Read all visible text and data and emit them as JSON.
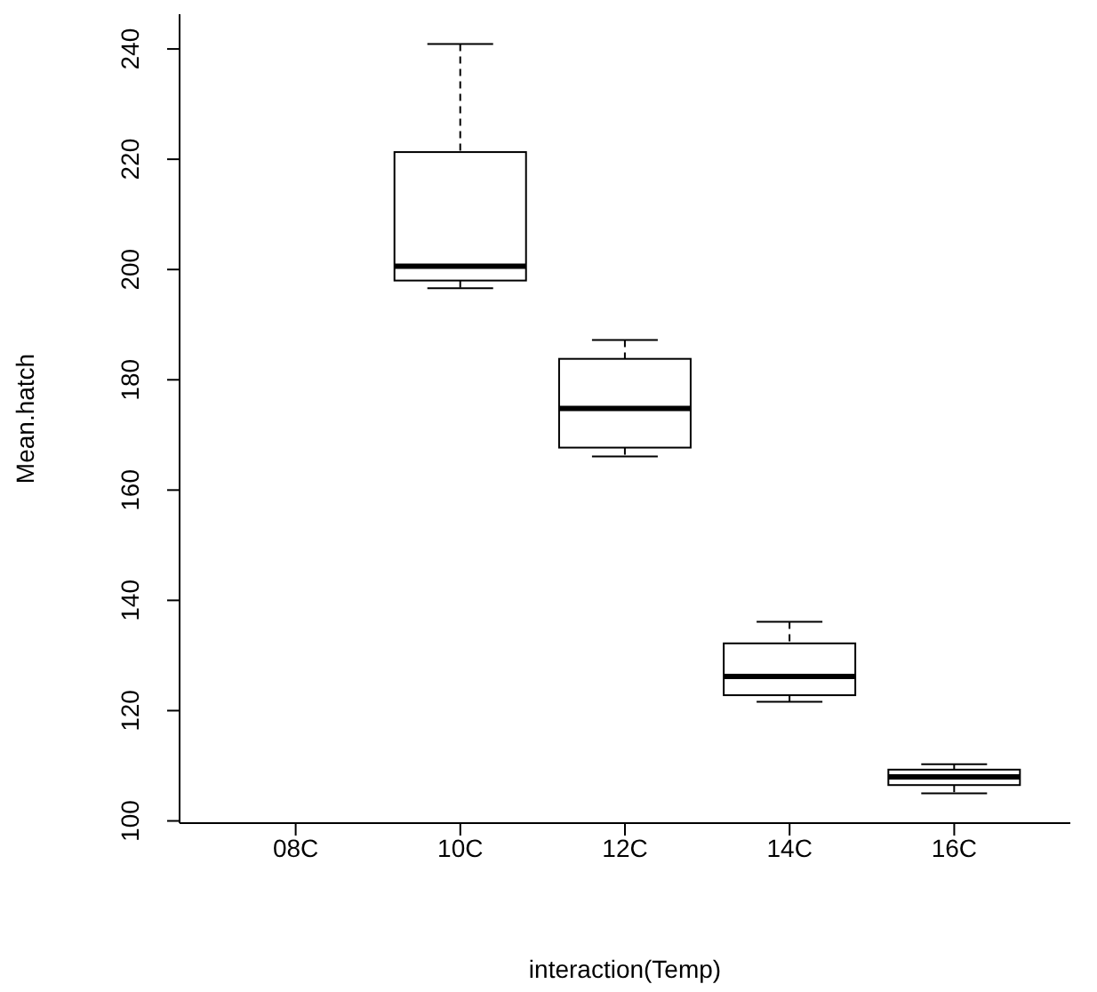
{
  "chart_data": {
    "type": "box",
    "xlabel": "interaction(Temp)",
    "ylabel": "Mean.hatch",
    "categories": [
      "08C",
      "10C",
      "12C",
      "14C",
      "16C"
    ],
    "boxes": [
      null,
      {
        "low": 196.6,
        "q1": 198.0,
        "median": 200.6,
        "q3": 221.3,
        "high": 240.9
      },
      {
        "low": 166.1,
        "q1": 167.7,
        "median": 174.8,
        "q3": 183.8,
        "high": 187.2
      },
      {
        "low": 121.6,
        "q1": 122.8,
        "median": 126.2,
        "q3": 132.2,
        "high": 136.1
      },
      {
        "low": 105.0,
        "q1": 106.5,
        "median": 108.0,
        "q3": 109.3,
        "high": 110.3
      }
    ],
    "ylim": [
      99.6,
      246.3
    ],
    "yticks": [
      100,
      120,
      140,
      160,
      180,
      200,
      220,
      240
    ]
  }
}
